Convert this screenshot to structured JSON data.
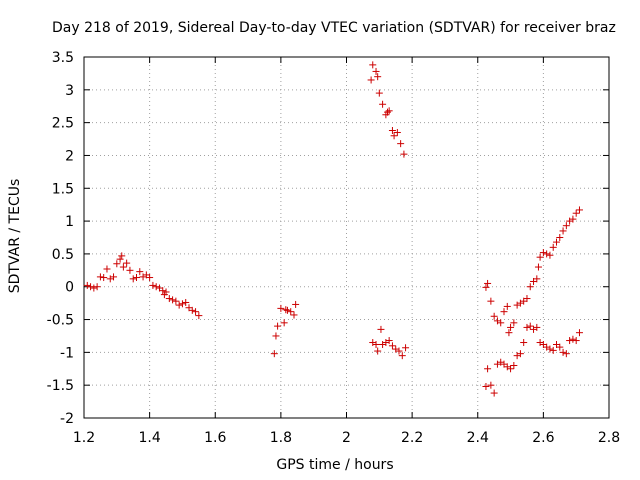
{
  "chart_data": {
    "type": "scatter",
    "title": "Day 218 of 2019, Sidereal Day-to-day VTEC variation (SDTVAR) for receiver braz",
    "xlabel": "GPS time / hours",
    "ylabel": "SDTVAR / TECUs",
    "xlim": [
      1.2,
      2.8
    ],
    "ylim": [
      -2,
      3.5
    ],
    "xticks": [
      1.2,
      1.4,
      1.6,
      1.8,
      2,
      2.2,
      2.4,
      2.6,
      2.8
    ],
    "xtick_labels": [
      "1.2",
      "1.4",
      "1.6",
      "1.8",
      "2",
      "2.2",
      "2.4",
      "2.6",
      "2.8"
    ],
    "yticks": [
      -2,
      -1.5,
      -1,
      -0.5,
      0,
      0.5,
      1,
      1.5,
      2,
      2.5,
      3,
      3.5
    ],
    "ytick_labels": [
      "-2",
      "-1.5",
      "-1",
      "-0.5",
      "0",
      "0.5",
      "1",
      "1.5",
      "2",
      "2.5",
      "3",
      "3.5"
    ],
    "grid": true,
    "marker": "+",
    "marker_color": "#cc0000",
    "series": [
      {
        "name": "SDTVAR",
        "points": [
          [
            1.21,
            0.02
          ],
          [
            1.22,
            0.0
          ],
          [
            1.23,
            -0.02
          ],
          [
            1.24,
            0.0
          ],
          [
            1.25,
            0.15
          ],
          [
            1.26,
            0.14
          ],
          [
            1.27,
            0.27
          ],
          [
            1.28,
            0.12
          ],
          [
            1.29,
            0.15
          ],
          [
            1.3,
            0.35
          ],
          [
            1.31,
            0.42
          ],
          [
            1.315,
            0.47
          ],
          [
            1.32,
            0.3
          ],
          [
            1.33,
            0.36
          ],
          [
            1.34,
            0.25
          ],
          [
            1.35,
            0.12
          ],
          [
            1.36,
            0.14
          ],
          [
            1.37,
            0.23
          ],
          [
            1.38,
            0.15
          ],
          [
            1.39,
            0.18
          ],
          [
            1.4,
            0.14
          ],
          [
            1.41,
            0.02
          ],
          [
            1.42,
            0.0
          ],
          [
            1.43,
            -0.02
          ],
          [
            1.44,
            -0.06
          ],
          [
            1.445,
            -0.12
          ],
          [
            1.45,
            -0.08
          ],
          [
            1.46,
            -0.18
          ],
          [
            1.47,
            -0.2
          ],
          [
            1.48,
            -0.22
          ],
          [
            1.49,
            -0.28
          ],
          [
            1.5,
            -0.26
          ],
          [
            1.51,
            -0.24
          ],
          [
            1.52,
            -0.32
          ],
          [
            1.53,
            -0.36
          ],
          [
            1.54,
            -0.38
          ],
          [
            1.55,
            -0.44
          ],
          [
            1.78,
            -1.02
          ],
          [
            1.785,
            -0.75
          ],
          [
            1.79,
            -0.6
          ],
          [
            1.8,
            -0.33
          ],
          [
            1.81,
            -0.55
          ],
          [
            1.815,
            -0.35
          ],
          [
            1.82,
            -0.36
          ],
          [
            1.83,
            -0.38
          ],
          [
            1.84,
            -0.43
          ],
          [
            1.845,
            -0.27
          ],
          [
            2.075,
            3.15
          ],
          [
            2.08,
            3.38
          ],
          [
            2.09,
            3.28
          ],
          [
            2.095,
            3.2
          ],
          [
            2.1,
            2.95
          ],
          [
            2.11,
            2.78
          ],
          [
            2.12,
            2.62
          ],
          [
            2.125,
            2.66
          ],
          [
            2.13,
            2.68
          ],
          [
            2.14,
            2.38
          ],
          [
            2.145,
            2.3
          ],
          [
            2.155,
            2.35
          ],
          [
            2.165,
            2.18
          ],
          [
            2.175,
            2.02
          ],
          [
            2.08,
            -0.85
          ],
          [
            2.09,
            -0.88
          ],
          [
            2.095,
            -0.98
          ],
          [
            2.105,
            -0.65
          ],
          [
            2.11,
            -0.88
          ],
          [
            2.12,
            -0.85
          ],
          [
            2.13,
            -0.82
          ],
          [
            2.14,
            -0.9
          ],
          [
            2.15,
            -0.95
          ],
          [
            2.16,
            -0.98
          ],
          [
            2.17,
            -1.05
          ],
          [
            2.18,
            -0.93
          ],
          [
            2.425,
            -0.01
          ],
          [
            2.43,
            0.05
          ],
          [
            2.44,
            -0.22
          ],
          [
            2.45,
            -0.45
          ],
          [
            2.46,
            -0.52
          ],
          [
            2.47,
            -0.55
          ],
          [
            2.48,
            -0.38
          ],
          [
            2.49,
            -0.3
          ],
          [
            2.495,
            -0.7
          ],
          [
            2.5,
            -0.62
          ],
          [
            2.51,
            -0.55
          ],
          [
            2.52,
            -0.28
          ],
          [
            2.53,
            -0.25
          ],
          [
            2.54,
            -0.22
          ],
          [
            2.55,
            -0.18
          ],
          [
            2.56,
            0.0
          ],
          [
            2.57,
            0.08
          ],
          [
            2.58,
            0.12
          ],
          [
            2.585,
            0.3
          ],
          [
            2.59,
            0.45
          ],
          [
            2.6,
            0.52
          ],
          [
            2.61,
            0.5
          ],
          [
            2.62,
            0.48
          ],
          [
            2.63,
            0.6
          ],
          [
            2.64,
            0.68
          ],
          [
            2.65,
            0.75
          ],
          [
            2.66,
            0.85
          ],
          [
            2.67,
            0.93
          ],
          [
            2.68,
            1.0
          ],
          [
            2.69,
            1.03
          ],
          [
            2.7,
            1.12
          ],
          [
            2.71,
            1.17
          ],
          [
            2.425,
            -1.52
          ],
          [
            2.43,
            -1.25
          ],
          [
            2.44,
            -1.5
          ],
          [
            2.45,
            -1.62
          ],
          [
            2.46,
            -1.18
          ],
          [
            2.47,
            -1.15
          ],
          [
            2.48,
            -1.18
          ],
          [
            2.49,
            -1.22
          ],
          [
            2.5,
            -1.25
          ],
          [
            2.51,
            -1.2
          ],
          [
            2.52,
            -1.05
          ],
          [
            2.53,
            -1.02
          ],
          [
            2.54,
            -0.85
          ],
          [
            2.55,
            -0.62
          ],
          [
            2.56,
            -0.6
          ],
          [
            2.57,
            -0.65
          ],
          [
            2.58,
            -0.62
          ],
          [
            2.59,
            -0.85
          ],
          [
            2.6,
            -0.88
          ],
          [
            2.61,
            -0.92
          ],
          [
            2.62,
            -0.95
          ],
          [
            2.63,
            -0.97
          ],
          [
            2.64,
            -0.88
          ],
          [
            2.65,
            -0.92
          ],
          [
            2.66,
            -1.0
          ],
          [
            2.67,
            -1.02
          ],
          [
            2.68,
            -0.82
          ],
          [
            2.69,
            -0.8
          ],
          [
            2.7,
            -0.82
          ],
          [
            2.71,
            -0.7
          ]
        ]
      }
    ]
  }
}
